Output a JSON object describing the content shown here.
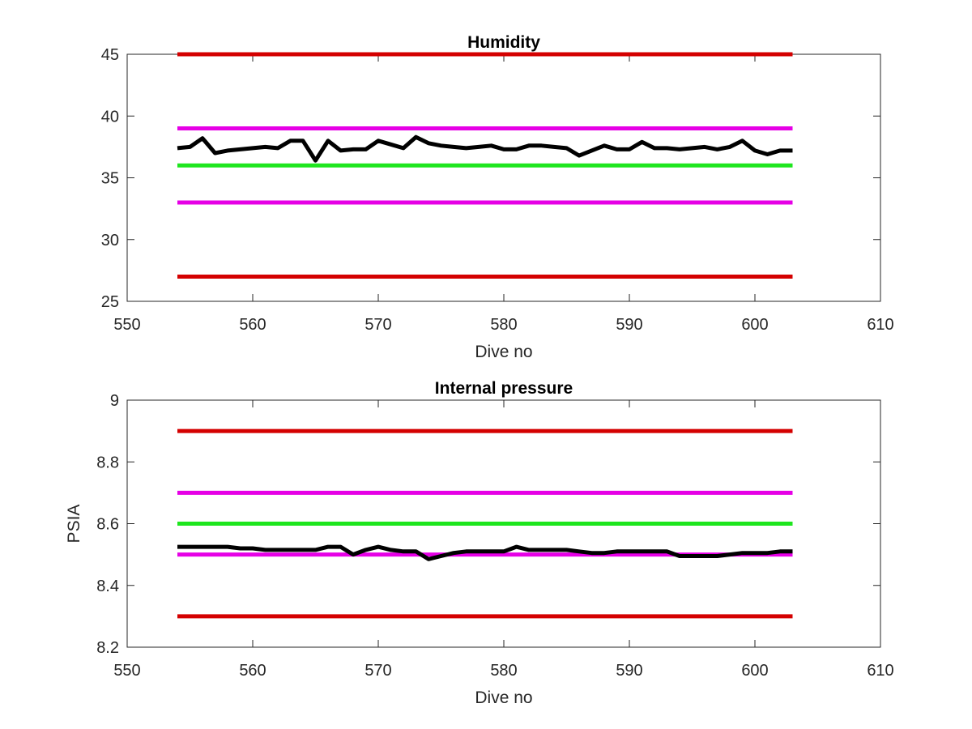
{
  "chart_data": [
    {
      "type": "line",
      "title": "Humidity",
      "xlabel": "Dive no",
      "ylabel": "",
      "xlim": [
        550,
        610
      ],
      "ylim": [
        25,
        45
      ],
      "xticks": [
        550,
        560,
        570,
        580,
        590,
        600,
        610
      ],
      "yticks": [
        25,
        30,
        35,
        40,
        45
      ],
      "grid": false,
      "legend": "none",
      "series": [
        {
          "color": "#d40000",
          "x": [
            554,
            603
          ],
          "y": [
            45,
            45
          ]
        },
        {
          "color": "#e600e6",
          "x": [
            554,
            603
          ],
          "y": [
            39,
            39
          ]
        },
        {
          "color": "#1ee61e",
          "x": [
            554,
            603
          ],
          "y": [
            36,
            36
          ]
        },
        {
          "color": "#e600e6",
          "x": [
            554,
            603
          ],
          "y": [
            33,
            33
          ]
        },
        {
          "color": "#d40000",
          "x": [
            554,
            603
          ],
          "y": [
            27,
            27
          ]
        },
        {
          "color": "#000000",
          "x": [
            554,
            555,
            556,
            557,
            558,
            559,
            560,
            561,
            562,
            563,
            564,
            565,
            566,
            567,
            568,
            569,
            570,
            571,
            572,
            573,
            574,
            575,
            576,
            577,
            578,
            579,
            580,
            581,
            582,
            583,
            584,
            585,
            586,
            587,
            588,
            589,
            590,
            591,
            592,
            593,
            594,
            595,
            596,
            597,
            598,
            599,
            600,
            601,
            602,
            603
          ],
          "y": [
            37.4,
            37.5,
            38.2,
            37.0,
            37.2,
            37.3,
            37.4,
            37.5,
            37.4,
            38.0,
            38.0,
            36.4,
            38.0,
            37.2,
            37.3,
            37.3,
            38.0,
            37.7,
            37.4,
            38.3,
            37.8,
            37.6,
            37.5,
            37.4,
            37.5,
            37.6,
            37.3,
            37.3,
            37.6,
            37.6,
            37.5,
            37.4,
            36.8,
            37.2,
            37.6,
            37.3,
            37.3,
            37.9,
            37.4,
            37.4,
            37.3,
            37.4,
            37.5,
            37.3,
            37.5,
            38.0,
            37.2,
            36.9,
            37.2,
            37.2
          ]
        }
      ]
    },
    {
      "type": "line",
      "title": "Internal pressure",
      "xlabel": "Dive no",
      "ylabel": "PSIA",
      "xlim": [
        550,
        610
      ],
      "ylim": [
        8.2,
        9
      ],
      "xticks": [
        550,
        560,
        570,
        580,
        590,
        600,
        610
      ],
      "yticks": [
        "8.2",
        "8.4",
        "8.6",
        "8.8",
        "9"
      ],
      "grid": false,
      "legend": "none",
      "series": [
        {
          "color": "#d40000",
          "x": [
            554,
            603
          ],
          "y": [
            8.9,
            8.9
          ]
        },
        {
          "color": "#e600e6",
          "x": [
            554,
            603
          ],
          "y": [
            8.7,
            8.7
          ]
        },
        {
          "color": "#1ee61e",
          "x": [
            554,
            603
          ],
          "y": [
            8.6,
            8.6
          ]
        },
        {
          "color": "#e600e6",
          "x": [
            554,
            603
          ],
          "y": [
            8.5,
            8.5
          ]
        },
        {
          "color": "#d40000",
          "x": [
            554,
            603
          ],
          "y": [
            8.3,
            8.3
          ]
        },
        {
          "color": "#000000",
          "x": [
            554,
            555,
            556,
            557,
            558,
            559,
            560,
            561,
            562,
            563,
            564,
            565,
            566,
            567,
            568,
            569,
            570,
            571,
            572,
            573,
            574,
            575,
            576,
            577,
            578,
            579,
            580,
            581,
            582,
            583,
            584,
            585,
            586,
            587,
            588,
            589,
            590,
            591,
            592,
            593,
            594,
            595,
            596,
            597,
            598,
            599,
            600,
            601,
            602,
            603
          ],
          "y": [
            8.525,
            8.525,
            8.525,
            8.525,
            8.525,
            8.52,
            8.52,
            8.515,
            8.515,
            8.515,
            8.515,
            8.515,
            8.525,
            8.525,
            8.5,
            8.515,
            8.525,
            8.515,
            8.51,
            8.51,
            8.485,
            8.495,
            8.505,
            8.51,
            8.51,
            8.51,
            8.51,
            8.525,
            8.515,
            8.515,
            8.515,
            8.515,
            8.51,
            8.505,
            8.505,
            8.51,
            8.51,
            8.51,
            8.51,
            8.51,
            8.495,
            8.495,
            8.495,
            8.495,
            8.5,
            8.505,
            8.505,
            8.505,
            8.51,
            8.51
          ]
        }
      ]
    }
  ]
}
